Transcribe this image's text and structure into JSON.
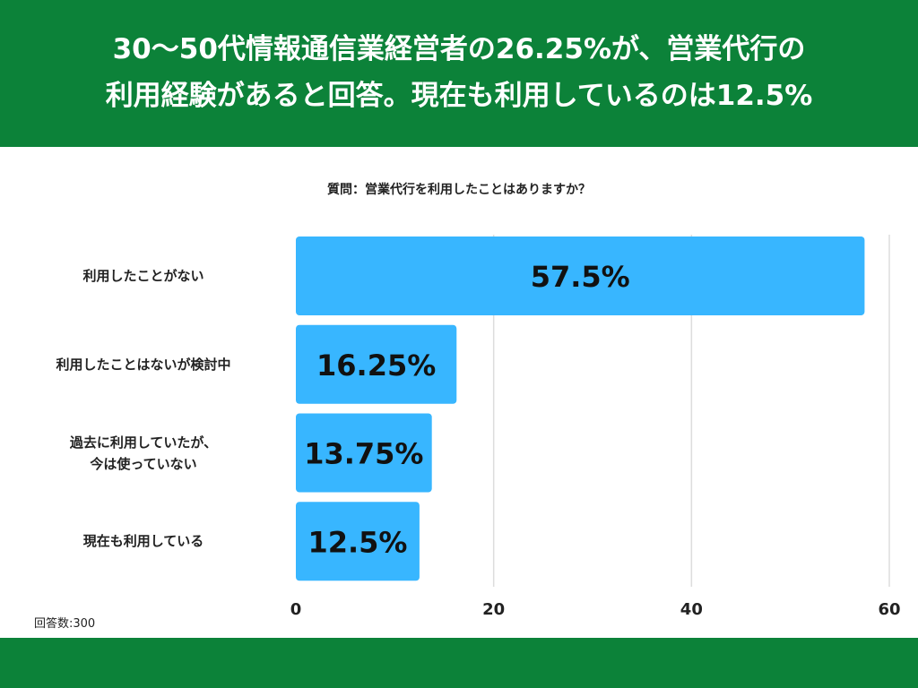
{
  "header": {
    "title_line1": "30〜50代情報通信業経営者の26.25%が、営業代行の",
    "title_line2": "利用経験があると回答。現在も利用しているのは12.5%"
  },
  "question": "質問：営業代行を利用したことはありますか？",
  "respondents": "回答数:300",
  "colors": {
    "header_bg": "#0c8239",
    "bar": "#38b6ff",
    "grid": "#dddddd"
  },
  "chart_data": {
    "type": "bar",
    "orientation": "horizontal",
    "title": "質問：営業代行を利用したことはありますか？",
    "categories": [
      [
        "利用したことがない"
      ],
      [
        "利用したことはないが検討中"
      ],
      [
        "過去に利用していたが、",
        "今は使っていない"
      ],
      [
        "現在も利用している"
      ]
    ],
    "values": [
      57.5,
      16.25,
      13.75,
      12.5
    ],
    "value_labels": [
      "57.5%",
      "16.25%",
      "13.75%",
      "12.5%"
    ],
    "xticks": [
      "0",
      "20",
      "40",
      "60"
    ],
    "xlim": [
      0,
      60
    ],
    "xlabel": "",
    "ylabel": "",
    "grid": true
  }
}
